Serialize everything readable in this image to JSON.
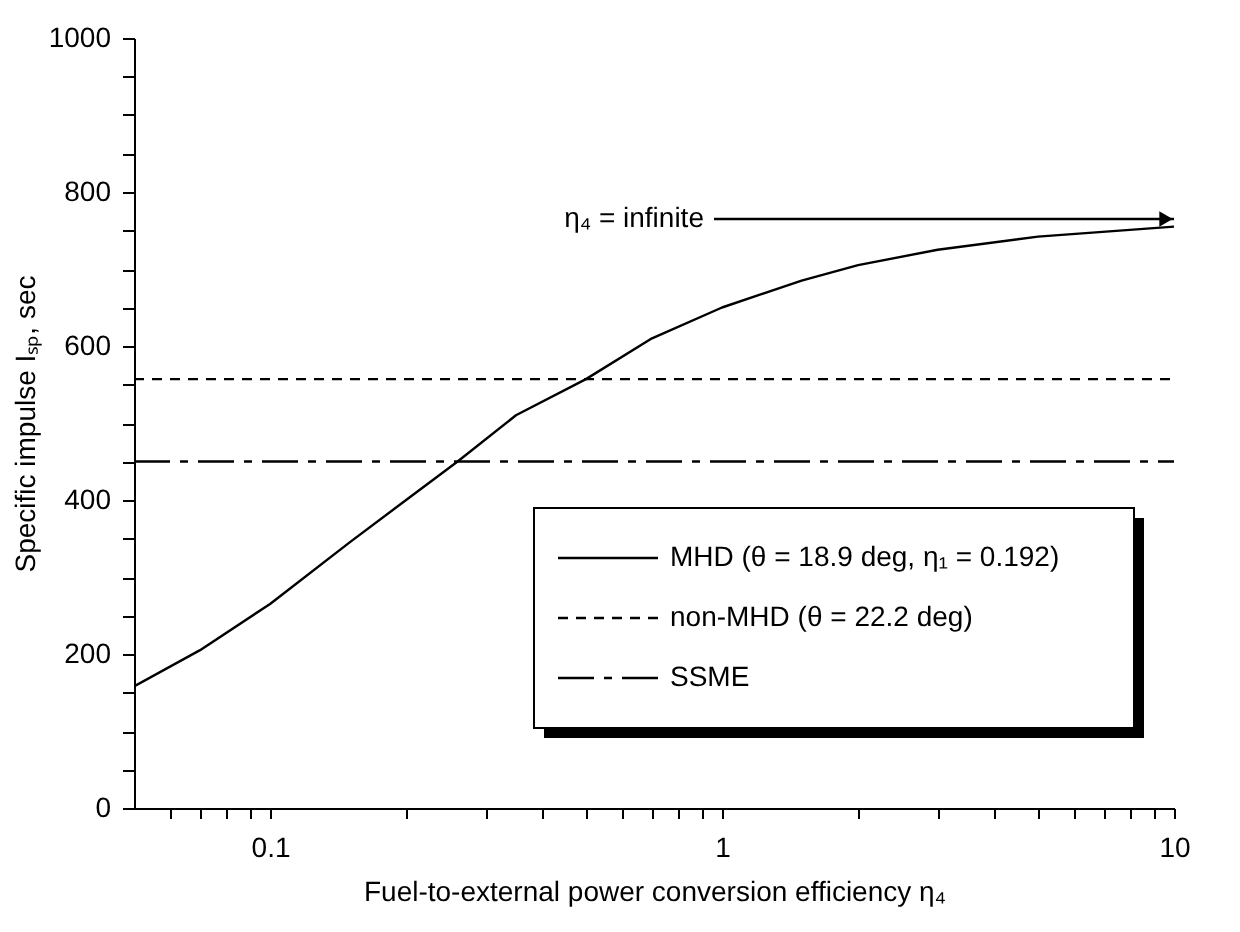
{
  "chart_data": {
    "type": "line",
    "xlabel": "Fuel-to-external power conversion efficiency η₄",
    "ylabel": "Specific impulse Iₛₚ, sec",
    "log": "x",
    "xlim": [
      0.05,
      10
    ],
    "ylim": [
      0,
      1000
    ],
    "xticks": [
      {
        "value": 0.06,
        "label": null
      },
      {
        "value": 0.07,
        "label": null
      },
      {
        "value": 0.08,
        "label": null
      },
      {
        "value": 0.09,
        "label": null
      },
      0.1,
      {
        "value": 0.2,
        "label": null
      },
      {
        "value": 0.3,
        "label": null
      },
      {
        "value": 0.4,
        "label": null
      },
      {
        "value": 0.5,
        "label": null
      },
      {
        "value": 0.6,
        "label": null
      },
      {
        "value": 0.7,
        "label": null
      },
      {
        "value": 0.8,
        "label": null
      },
      {
        "value": 0.9,
        "label": null
      },
      1,
      {
        "value": 2,
        "label": null
      },
      {
        "value": 3,
        "label": null
      },
      {
        "value": 4,
        "label": null
      },
      {
        "value": 5,
        "label": null
      },
      {
        "value": 6,
        "label": null
      },
      {
        "value": 7,
        "label": null
      },
      {
        "value": 8,
        "label": null
      },
      {
        "value": 9,
        "label": null
      },
      10
    ],
    "yticks": [
      0,
      {
        "value": 50,
        "label": null
      },
      {
        "value": 100,
        "label": null
      },
      {
        "value": 150,
        "label": null
      },
      200,
      {
        "value": 250,
        "label": null
      },
      {
        "value": 300,
        "label": null
      },
      {
        "value": 350,
        "label": null
      },
      400,
      {
        "value": 450,
        "label": null
      },
      {
        "value": 500,
        "label": null
      },
      {
        "value": 550,
        "label": null
      },
      600,
      {
        "value": 650,
        "label": null
      },
      {
        "value": 700,
        "label": null
      },
      {
        "value": 750,
        "label": null
      },
      800,
      {
        "value": 850,
        "label": null
      },
      {
        "value": 900,
        "label": null
      },
      {
        "value": 950,
        "label": null
      },
      1000
    ],
    "grid": false,
    "legend": "bottom right",
    "series": [
      {
        "name": "MHD (θ = 18.9 deg, η₁ = 0.192)",
        "color": "#000000",
        "line_style": "solid",
        "x": [
          0.05,
          0.07,
          0.1,
          0.15,
          0.2,
          0.26,
          0.35,
          0.5,
          0.7,
          1,
          1.5,
          2,
          3,
          5,
          10
        ],
        "values": [
          158,
          205,
          265,
          345,
          400,
          450,
          510,
          557,
          610,
          650,
          685,
          705,
          725,
          742,
          755
        ]
      },
      {
        "name": "non-MHD (θ = 22.2 deg)",
        "color": "#000000",
        "line_style": "dashed",
        "x": [
          0.05,
          10
        ],
        "values": [
          557,
          557
        ]
      },
      {
        "name": "SSME",
        "color": "#000000",
        "line_style": "longdash",
        "x": [
          0.05,
          10
        ],
        "values": [
          450,
          450
        ]
      }
    ],
    "annotations": [
      {
        "text": "η₄ = infinite",
        "x": 10,
        "y": 765
      }
    ]
  }
}
